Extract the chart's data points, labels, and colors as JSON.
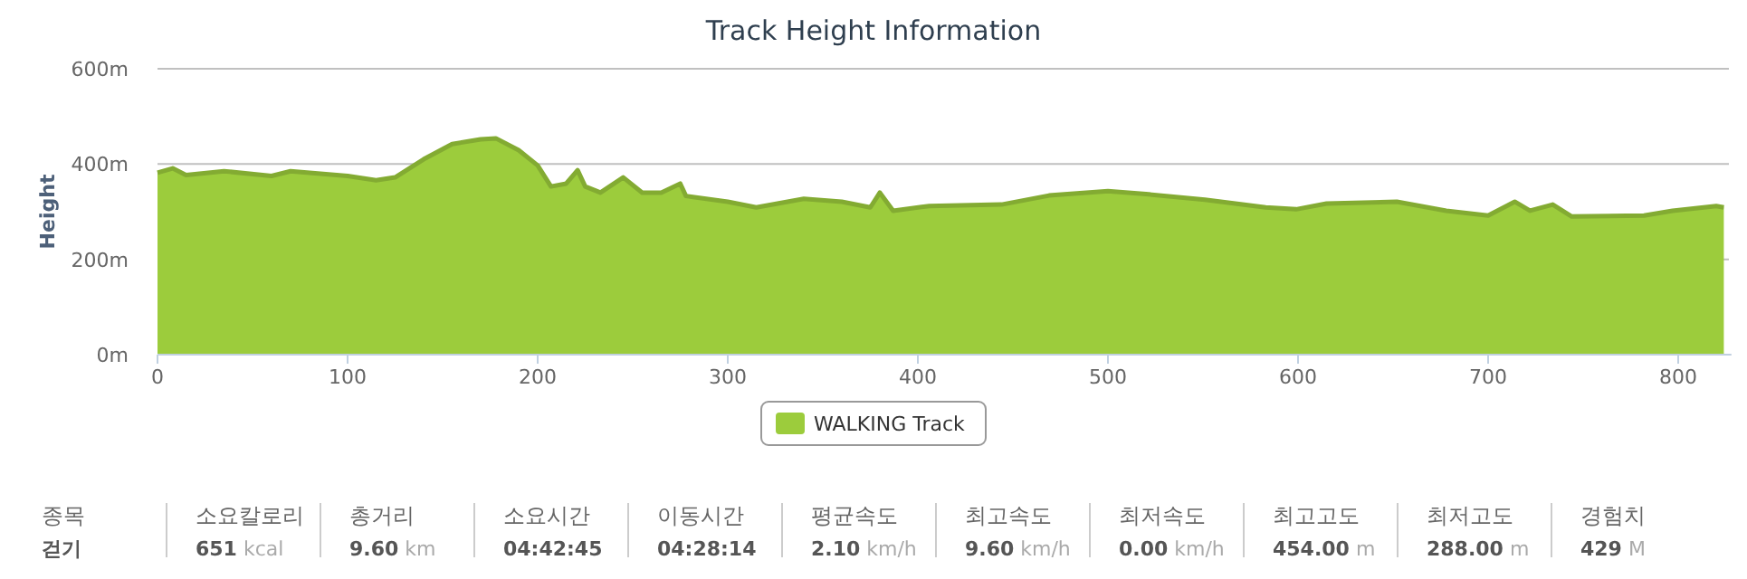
{
  "chart_data": {
    "type": "area",
    "title": "Track Height Information",
    "ylabel": "Height",
    "xlim": [
      0,
      828
    ],
    "xticks": [
      0,
      100,
      200,
      300,
      400,
      500,
      600,
      700,
      800
    ],
    "ylim": [
      0,
      600
    ],
    "yticks": [
      {
        "value": 0,
        "label": "0m"
      },
      {
        "value": 200,
        "label": "200m"
      },
      {
        "value": 400,
        "label": "400m"
      },
      {
        "value": 600,
        "label": "600m"
      }
    ],
    "grid": "y",
    "legend": "bottom",
    "series": [
      {
        "name": "WALKING Track",
        "color": "#9ccc3c",
        "x": [
          0,
          8,
          15,
          35,
          60,
          70,
          100,
          115,
          125,
          140,
          155,
          170,
          178,
          190,
          200,
          207,
          215,
          221,
          225,
          233,
          245,
          255,
          265,
          275,
          278,
          300,
          315,
          340,
          360,
          375,
          380,
          387,
          406,
          444,
          469,
          500,
          520,
          551,
          583,
          599,
          615,
          652,
          678,
          700,
          714,
          722,
          734,
          744,
          782,
          797,
          820,
          824
        ],
        "values": [
          382,
          391,
          377,
          385,
          375,
          385,
          375,
          366,
          372,
          410,
          442,
          452,
          454,
          429,
          397,
          353,
          359,
          387,
          353,
          340,
          372,
          340,
          340,
          359,
          333,
          321,
          309,
          327,
          321,
          309,
          340,
          302,
          312,
          315,
          334,
          343,
          337,
          325,
          309,
          305,
          317,
          321,
          302,
          292,
          321,
          302,
          315,
          290,
          292,
          302,
          312,
          309
        ]
      }
    ],
    "annotations": [
      "종목",
      "걷기",
      "소요칼로리",
      "651 kcal",
      "총거리",
      "9.60 km",
      "소요시간",
      "04:42:45",
      "이동시간",
      "04:28:14",
      "평균속도",
      "2.10 km/h",
      "최고속도",
      "9.60 km/h",
      "최저속도",
      "0.00 km/h",
      "최고고도",
      "454.00 m",
      "최저고도",
      "288.00 m",
      "경험치",
      "429 M"
    ]
  }
}
